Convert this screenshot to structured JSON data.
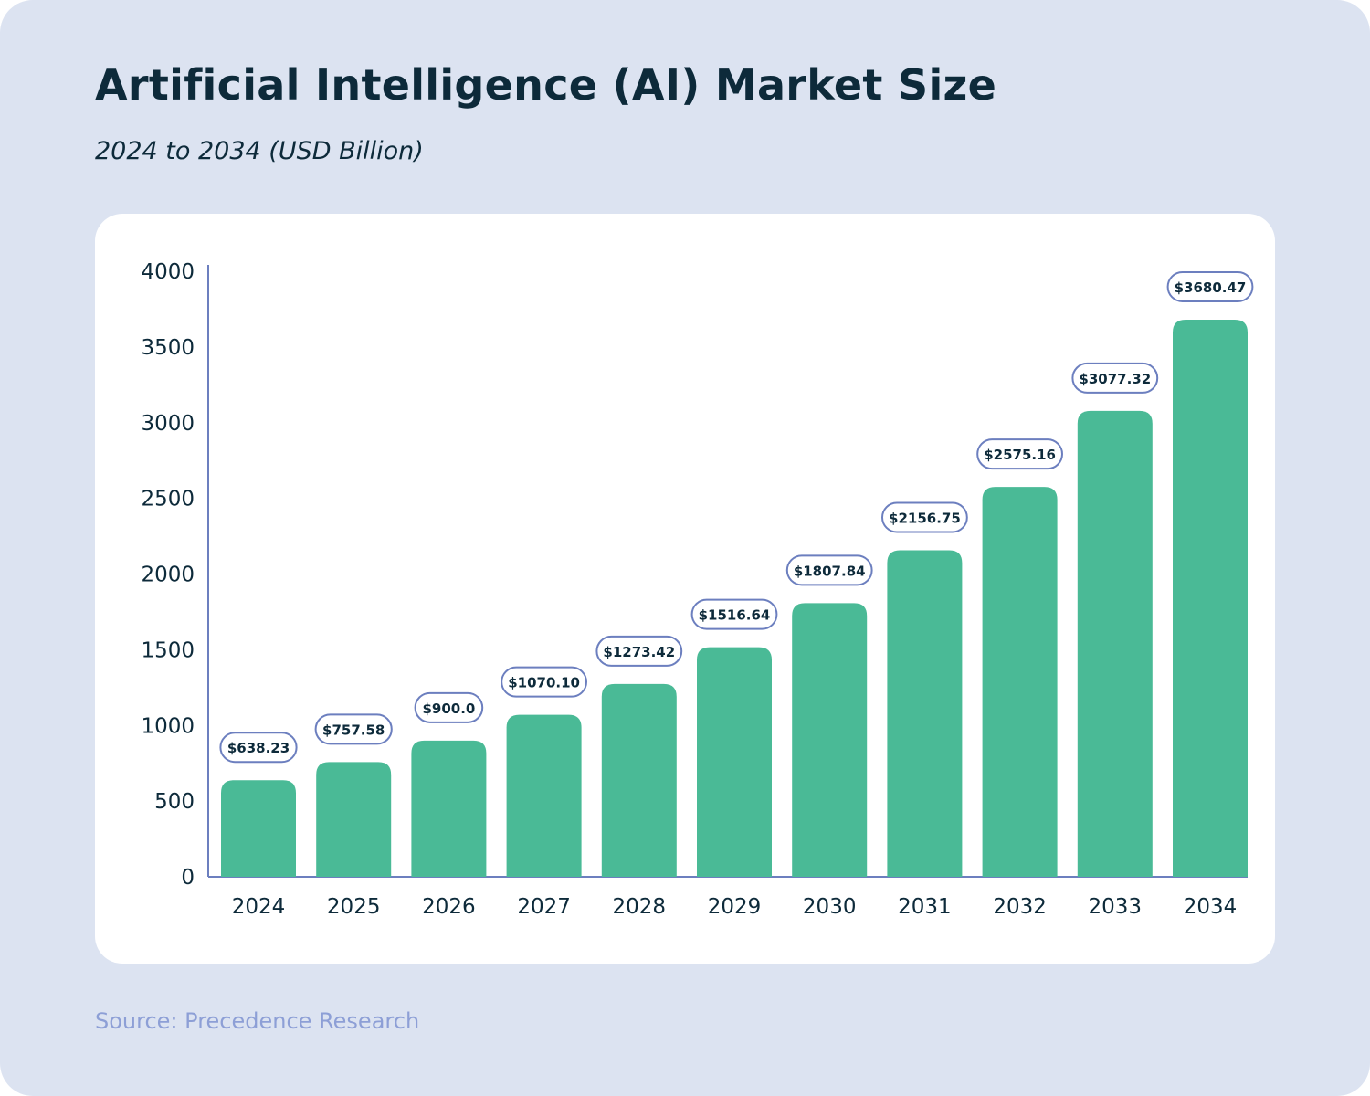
{
  "header": {
    "title": "Artificial Intelligence (AI) Market Size",
    "subtitle": "2024 to 2034 (USD Billion)"
  },
  "footer": {
    "source": "Source: Precedence Research"
  },
  "colors": {
    "background": "#dce3f1",
    "bar": "#4aba96",
    "label_border": "#6c7fbf",
    "text": "#0d2a3a",
    "source_text": "#8d9fd6"
  },
  "chart_data": {
    "type": "bar",
    "title": "Artificial Intelligence (AI) Market Size",
    "subtitle": "2024 to 2034 (USD Billion)",
    "xlabel": "",
    "ylabel": "",
    "ylim": [
      0,
      4000
    ],
    "yticks": [
      0,
      500,
      1000,
      1500,
      2000,
      2500,
      3000,
      3500,
      4000
    ],
    "grid": false,
    "categories": [
      "2024",
      "2025",
      "2026",
      "2027",
      "2028",
      "2029",
      "2030",
      "2031",
      "2032",
      "2033",
      "2034"
    ],
    "values": [
      638.23,
      757.58,
      900.0,
      1070.1,
      1273.42,
      1516.64,
      1807.84,
      2156.75,
      2575.16,
      3077.32,
      3680.47
    ],
    "data_labels": [
      "$638.23",
      "$757.58",
      "$900.0",
      "$1070.10",
      "$1273.42",
      "$1516.64",
      "$1807.84",
      "$2156.75",
      "$2575.16",
      "$3077.32",
      "$3680.47"
    ]
  }
}
